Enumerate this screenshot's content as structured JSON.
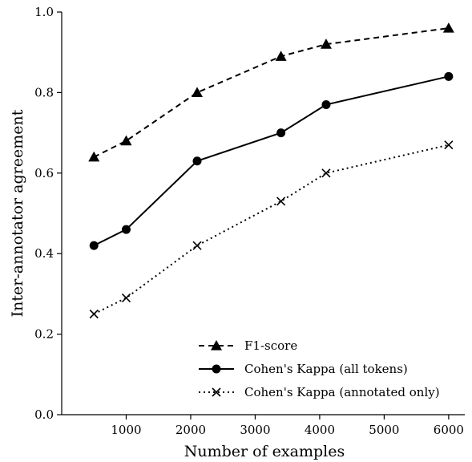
{
  "chart_data": {
    "type": "line",
    "title": "",
    "xlabel": "Number of examples",
    "ylabel": "Inter-annotator agreement",
    "xlim": [
      0,
      6250
    ],
    "ylim": [
      0.0,
      1.0
    ],
    "x_ticks": [
      1000,
      2000,
      3000,
      4000,
      5000,
      6000
    ],
    "x_tick_labels": [
      "1000",
      "2000",
      "3000",
      "4000",
      "5000",
      "6000"
    ],
    "y_ticks": [
      0.0,
      0.2,
      0.4,
      0.6,
      0.8,
      1.0
    ],
    "y_tick_labels": [
      "0.0",
      "0.2",
      "0.4",
      "0.6",
      "0.8",
      "1.0"
    ],
    "grid": false,
    "legend_position": "lower-right",
    "x": [
      500,
      1000,
      2100,
      3400,
      4100,
      6000
    ],
    "series": [
      {
        "name": "F1-score",
        "values": [
          0.64,
          0.68,
          0.8,
          0.89,
          0.92,
          0.96
        ],
        "marker": "triangle",
        "line_style": "dashed",
        "color": "#000000"
      },
      {
        "name": "Cohen's Kappa (all tokens)",
        "values": [
          0.42,
          0.46,
          0.63,
          0.7,
          0.77,
          0.84
        ],
        "marker": "circle",
        "line_style": "solid",
        "color": "#000000"
      },
      {
        "name": "Cohen's Kappa (annotated only)",
        "values": [
          0.25,
          0.29,
          0.42,
          0.53,
          0.6,
          0.67
        ],
        "marker": "x",
        "line_style": "dotted",
        "color": "#000000"
      }
    ]
  }
}
